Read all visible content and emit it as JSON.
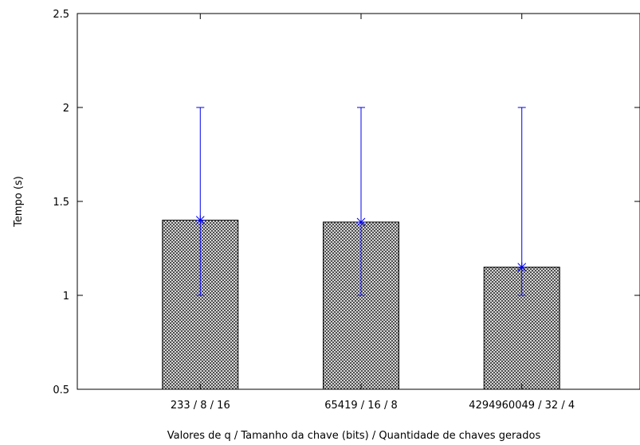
{
  "chart_data": {
    "type": "bar",
    "categories": [
      "233 / 8 / 16",
      "65419 / 16 / 8",
      "4294960049 / 32 / 4"
    ],
    "values": [
      1.4,
      1.39,
      1.15
    ],
    "error_low": [
      1.0,
      1.0,
      1.0
    ],
    "error_high": [
      2.0,
      2.0,
      2.0
    ],
    "xlabel": "Valores de q / Tamanho da chave (bits) / Quantidade de chaves gerados",
    "ylabel": "Tempo (s)",
    "ylim": [
      0.5,
      2.5
    ],
    "yticks": [
      0.5,
      1,
      1.5,
      2,
      2.5
    ],
    "ytick_labels": [
      "0.5",
      "1",
      "1.5",
      "2",
      "2.5"
    ],
    "grid": false,
    "legend": "none",
    "bar_fill": "crosshatch",
    "bar_color": "#000000",
    "errorbar_color": "#0000ee"
  }
}
